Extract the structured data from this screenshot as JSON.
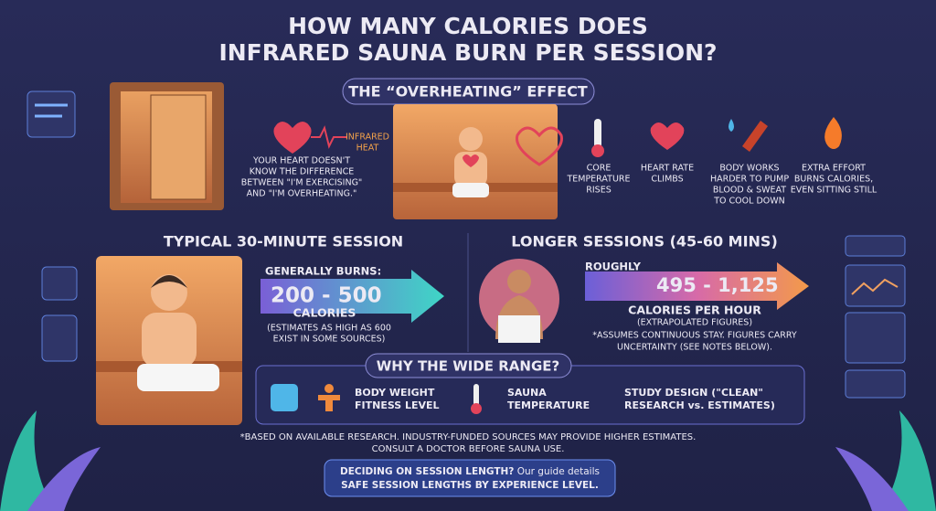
{
  "header": {
    "title_lines": [
      "HOW MANY CALORIES DOES",
      "INFRARED SAUNA BURN PER SESSION?"
    ]
  },
  "overheating": {
    "title": "THE “OVERHEATING” EFFECT",
    "infrared_label": [
      "INFRARED",
      "HEAT"
    ],
    "heart_note": [
      "YOUR HEART DOESN'T",
      "KNOW THE DIFFERENCE",
      "BETWEEN \"I'M EXERCISING\"",
      "AND \"I'M OVERHEATING.\""
    ],
    "steps": [
      [
        "CORE",
        "TEMPERATURE",
        "RISES"
      ],
      [
        "HEART RATE",
        "CLIMBS"
      ],
      [
        "BODY WORKS",
        "HARDER TO PUMP",
        "BLOOD & SWEAT",
        "TO COOL DOWN"
      ],
      [
        "EXTRA EFFORT",
        "BURNS CALORIES,",
        "EVEN SITTING STILL"
      ]
    ]
  },
  "typical": {
    "title": "TYPICAL 30-MINUTE SESSION",
    "lead": "GENERALLY BURNS:",
    "range": "200 - 500",
    "unit": "CALORIES",
    "note": [
      "(ESTIMATES AS HIGH AS 600",
      "EXIST IN SOME SOURCES)"
    ]
  },
  "longer": {
    "title": "LONGER SESSIONS (45-60 MINS)",
    "lead": "ROUGHLY",
    "range": "495 - 1,125",
    "unit": "CALORIES PER HOUR",
    "sub": "(EXTRAPOLATED FIGURES)",
    "note": [
      "*ASSUMES CONTINUOUS STAY. FIGURES CARRY",
      "UNCERTAINTY (SEE NOTES BELOW)."
    ]
  },
  "why": {
    "title": "WHY THE WIDE RANGE?",
    "factors": [
      [
        "BODY WEIGHT",
        "FITNESS LEVEL"
      ],
      [
        "SAUNA",
        "TEMPERATURE"
      ],
      [
        "STUDY DESIGN (\"CLEAN\"",
        "RESEARCH vs. ESTIMATES)"
      ]
    ]
  },
  "footnote": [
    "*BASED ON AVAILABLE RESEARCH. INDUSTRY-FUNDED SOURCES MAY PROVIDE HIGHER ESTIMATES.",
    "CONSULT A DOCTOR BEFORE SAUNA USE."
  ],
  "cta": {
    "bold": "DECIDING ON SESSION LENGTH?",
    "rest": " Our guide details",
    "line2": "SAFE SESSION LENGTHS BY EXPERIENCE LEVEL."
  }
}
